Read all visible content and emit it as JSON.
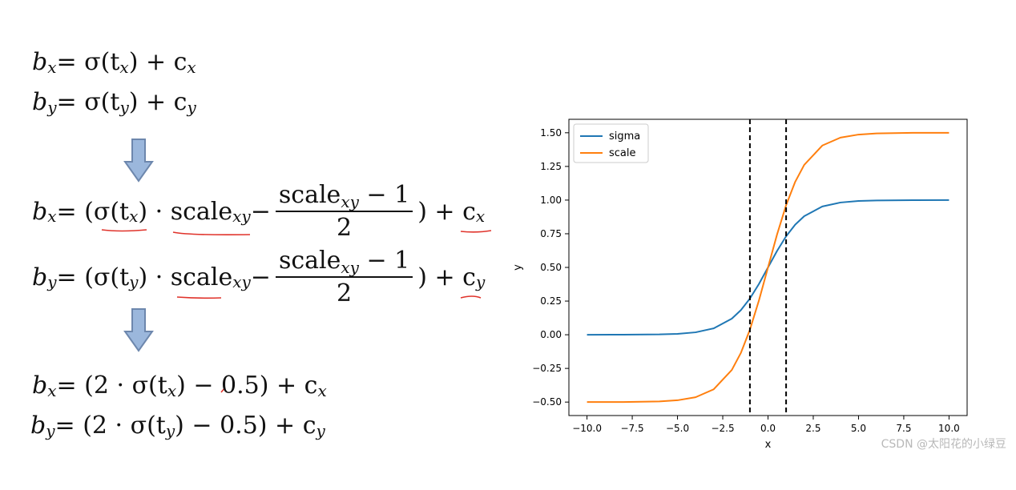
{
  "formulas": {
    "eq1": {
      "lhs": "b",
      "lhs_sub": "x",
      "t1": " = σ(t",
      "t1_sub": "x",
      "t2": ") + c",
      "t2_sub": "x"
    },
    "eq2": {
      "lhs": "b",
      "lhs_sub": "y",
      "t1": " = σ(t",
      "t1_sub": "y",
      "t2": ") + c",
      "t2_sub": "y"
    },
    "eq3": {
      "lhs": "b",
      "lhs_sub": "x",
      "t1": " = (σ(t",
      "t1_sub": "x",
      "t2": ") · scale",
      "t2_sub": "xy",
      "t3": " − ",
      "frac_num": "scale",
      "frac_num_sub": "xy",
      "frac_num_tail": " − 1",
      "frac_den": "2",
      "t4": ") + c",
      "t4_sub": "x"
    },
    "eq4": {
      "lhs": "b",
      "lhs_sub": "y",
      "t1": " = (σ(t",
      "t1_sub": "y",
      "t2": ") · scale",
      "t2_sub": "xy",
      "t3": " − ",
      "frac_num": "scale",
      "frac_num_sub": "xy",
      "frac_num_tail": " − 1",
      "frac_den": "2",
      "t4": ") + c",
      "t4_sub": "y"
    },
    "eq5": {
      "lhs": "b",
      "lhs_sub": "x",
      "t1": " = (2 · σ(t",
      "t1_sub": "x",
      "t2": ") − 0.5) + c",
      "t2_sub": "x"
    },
    "eq6": {
      "lhs": "b",
      "lhs_sub": "y",
      "t1": " = (2 · σ(t",
      "t1_sub": "y",
      "t2": ") − 0.5) + c",
      "t2_sub": "y"
    }
  },
  "colors": {
    "arrow_fill": "#9bb7dc",
    "arrow_stroke": "#6d87ad",
    "underline_red": "#e0332b",
    "sigma_line": "#1f77b4",
    "scale_line": "#ff7f0e"
  },
  "chart_data": {
    "type": "line",
    "title": "",
    "xlabel": "x",
    "ylabel": "y",
    "xlim": [
      -11.0,
      11.0
    ],
    "ylim": [
      -0.6,
      1.6
    ],
    "xticks": [
      -10.0,
      -7.5,
      -5.0,
      -2.5,
      0.0,
      2.5,
      5.0,
      7.5,
      10.0
    ],
    "xtick_labels": [
      "−10.0",
      "−7.5",
      "−5.0",
      "−2.5",
      "0.0",
      "2.5",
      "5.0",
      "7.5",
      "10.0"
    ],
    "yticks": [
      -0.5,
      -0.25,
      0.0,
      0.25,
      0.5,
      0.75,
      1.0,
      1.25,
      1.5
    ],
    "ytick_labels": [
      "−0.50",
      "−0.25",
      "0.00",
      "0.25",
      "0.50",
      "0.75",
      "1.00",
      "1.25",
      "1.50"
    ],
    "legend_position": "top-left",
    "series": [
      {
        "name": "sigma",
        "color": "#1f77b4",
        "x": [
          -10,
          -8,
          -6,
          -5,
          -4,
          -3,
          -2,
          -1.5,
          -1,
          -0.5,
          0,
          0.5,
          1,
          1.5,
          2,
          3,
          4,
          5,
          6,
          8,
          10
        ],
        "y": [
          0.0,
          0.0003,
          0.0025,
          0.0067,
          0.018,
          0.0474,
          0.1192,
          0.1824,
          0.2689,
          0.3775,
          0.5,
          0.6225,
          0.7311,
          0.8176,
          0.8808,
          0.9526,
          0.982,
          0.9933,
          0.9975,
          0.9997,
          1.0
        ]
      },
      {
        "name": "scale",
        "color": "#ff7f0e",
        "x": [
          -10,
          -8,
          -6,
          -5,
          -4,
          -3,
          -2,
          -1.5,
          -1,
          -0.5,
          0,
          0.5,
          1,
          1.5,
          2,
          3,
          4,
          5,
          6,
          8,
          10
        ],
        "y": [
          -0.5,
          -0.4995,
          -0.4951,
          -0.4866,
          -0.464,
          -0.4052,
          -0.2616,
          -0.1352,
          0.0379,
          0.2551,
          0.5,
          0.7449,
          0.9621,
          1.1352,
          1.2616,
          1.4052,
          1.464,
          1.4866,
          1.4951,
          1.4995,
          1.5
        ]
      }
    ],
    "vlines": [
      {
        "x": -1,
        "style": "dashed",
        "color": "#000000"
      },
      {
        "x": 1,
        "style": "dashed",
        "color": "#000000"
      }
    ]
  },
  "watermark": "CSDN @太阳花的小绿豆"
}
